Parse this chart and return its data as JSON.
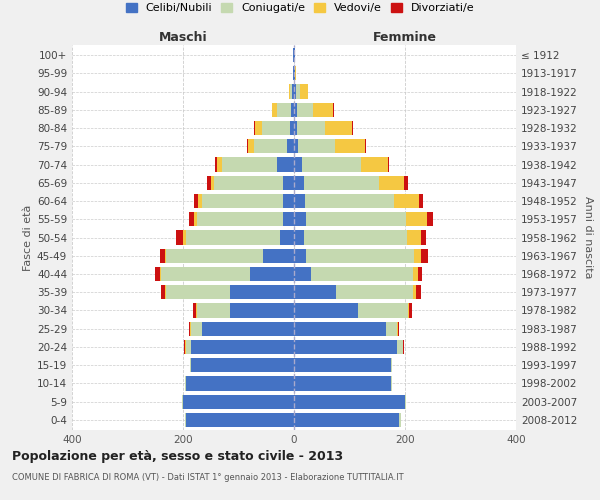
{
  "age_groups": [
    "0-4",
    "5-9",
    "10-14",
    "15-19",
    "20-24",
    "25-29",
    "30-34",
    "35-39",
    "40-44",
    "45-49",
    "50-54",
    "55-59",
    "60-64",
    "65-69",
    "70-74",
    "75-79",
    "80-84",
    "85-89",
    "90-94",
    "95-99",
    "100+"
  ],
  "birth_years": [
    "2008-2012",
    "2003-2007",
    "1998-2002",
    "1993-1997",
    "1988-1992",
    "1983-1987",
    "1978-1982",
    "1973-1977",
    "1968-1972",
    "1963-1967",
    "1958-1962",
    "1953-1957",
    "1948-1952",
    "1943-1947",
    "1938-1942",
    "1933-1937",
    "1928-1932",
    "1923-1927",
    "1918-1922",
    "1913-1917",
    "≤ 1912"
  ],
  "male": {
    "celibi": [
      195,
      200,
      195,
      185,
      185,
      165,
      115,
      115,
      80,
      55,
      25,
      20,
      20,
      20,
      30,
      12,
      8,
      5,
      3,
      2,
      2
    ],
    "coniugati": [
      2,
      2,
      2,
      2,
      10,
      20,
      60,
      115,
      160,
      175,
      170,
      155,
      145,
      125,
      100,
      60,
      50,
      25,
      4,
      0,
      0
    ],
    "vedovi": [
      0,
      0,
      0,
      0,
      2,
      2,
      2,
      2,
      2,
      3,
      5,
      5,
      8,
      5,
      8,
      10,
      12,
      10,
      2,
      0,
      0
    ],
    "divorziati": [
      0,
      0,
      0,
      0,
      2,
      3,
      5,
      8,
      8,
      8,
      12,
      10,
      8,
      6,
      4,
      2,
      2,
      0,
      0,
      0,
      0
    ]
  },
  "female": {
    "nubili": [
      190,
      200,
      175,
      175,
      185,
      165,
      115,
      75,
      30,
      22,
      18,
      22,
      20,
      18,
      15,
      8,
      5,
      5,
      3,
      2,
      2
    ],
    "coniugate": [
      2,
      2,
      2,
      2,
      12,
      20,
      90,
      140,
      185,
      195,
      185,
      180,
      160,
      135,
      105,
      65,
      50,
      30,
      8,
      0,
      0
    ],
    "vedove": [
      0,
      0,
      0,
      0,
      0,
      2,
      2,
      5,
      8,
      12,
      25,
      38,
      45,
      45,
      50,
      55,
      50,
      35,
      15,
      2,
      0
    ],
    "divorziate": [
      0,
      0,
      0,
      0,
      2,
      3,
      5,
      8,
      8,
      12,
      10,
      10,
      8,
      8,
      2,
      2,
      2,
      2,
      0,
      0,
      0
    ]
  },
  "colors": {
    "celibi_nubili": "#4472C4",
    "coniugati": "#C5D9B0",
    "vedovi": "#F5C842",
    "divorziati": "#CC1111"
  },
  "title": "Popolazione per età, sesso e stato civile - 2013",
  "subtitle": "COMUNE DI FABRICA DI ROMA (VT) - Dati ISTAT 1° gennaio 2013 - Elaborazione TUTTITALIA.IT",
  "xlabel_left": "Maschi",
  "xlabel_right": "Femmine",
  "ylabel_left": "Fasce di età",
  "ylabel_right": "Anni di nascita",
  "xlim": 400,
  "legend_labels": [
    "Celibi/Nubili",
    "Coniugati/e",
    "Vedovi/e",
    "Divorziati/e"
  ],
  "bg_color": "#F0F0F0",
  "plot_bg_color": "#FFFFFF"
}
